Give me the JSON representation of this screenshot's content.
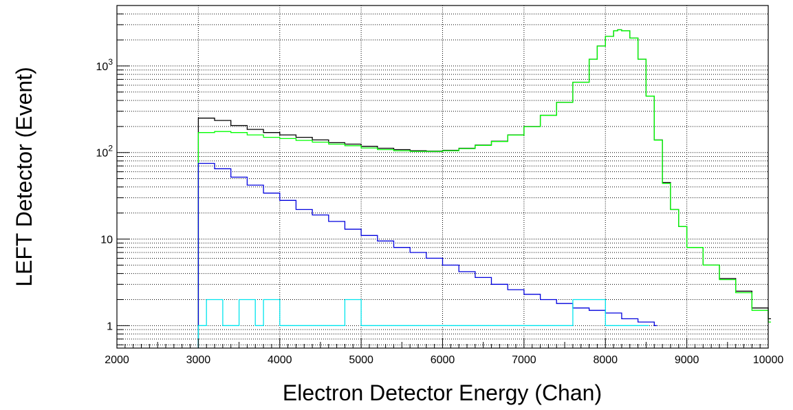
{
  "chart_data": {
    "type": "line",
    "title": "",
    "xlabel": "Electron Detector Energy (Chan)",
    "ylabel": "LEFT Detector (Event)",
    "x_range": [
      2000,
      10000
    ],
    "y_scale": "log",
    "y_range": [
      0.55,
      5000
    ],
    "grid": true,
    "legend": "none",
    "x_ticks": [
      "2000",
      "3000",
      "4000",
      "5000",
      "6000",
      "7000",
      "8000",
      "9000",
      "10000"
    ],
    "y_ticks": [
      {
        "value": 1,
        "label": "1"
      },
      {
        "value": 10,
        "label": "10"
      },
      {
        "value": 100,
        "label": "10",
        "exponent": "2"
      },
      {
        "value": 1000,
        "label": "10",
        "exponent": "3"
      }
    ],
    "series": [
      {
        "color": "#000000",
        "points": [
          [
            3000,
            250
          ],
          [
            3200,
            235
          ],
          [
            3400,
            205
          ],
          [
            3600,
            185
          ],
          [
            3800,
            170
          ],
          [
            4000,
            160
          ],
          [
            4200,
            150
          ],
          [
            4400,
            140
          ],
          [
            4600,
            130
          ],
          [
            4800,
            125
          ],
          [
            5000,
            118
          ],
          [
            5200,
            112
          ],
          [
            5400,
            108
          ],
          [
            5600,
            105
          ],
          [
            5800,
            104
          ],
          [
            6000,
            106
          ],
          [
            6200,
            112
          ],
          [
            6400,
            122
          ],
          [
            6600,
            135
          ],
          [
            6800,
            160
          ],
          [
            7000,
            200
          ],
          [
            7200,
            270
          ],
          [
            7400,
            380
          ],
          [
            7600,
            650
          ],
          [
            7800,
            1200
          ],
          [
            7900,
            1700
          ],
          [
            8000,
            2200
          ],
          [
            8100,
            2550
          ],
          [
            8150,
            2620
          ],
          [
            8200,
            2550
          ],
          [
            8300,
            2100
          ],
          [
            8400,
            1200
          ],
          [
            8500,
            450
          ],
          [
            8600,
            140
          ],
          [
            8700,
            45
          ],
          [
            8800,
            22
          ],
          [
            8900,
            14
          ],
          [
            9000,
            8
          ],
          [
            9200,
            5
          ],
          [
            9400,
            3.5
          ],
          [
            9600,
            2.5
          ],
          [
            9800,
            1.6
          ],
          [
            10000,
            1.2
          ]
        ]
      },
      {
        "color": "#00ff00",
        "points": [
          [
            3000,
            170
          ],
          [
            3200,
            175
          ],
          [
            3400,
            170
          ],
          [
            3600,
            160
          ],
          [
            3800,
            150
          ],
          [
            4000,
            145
          ],
          [
            4200,
            138
          ],
          [
            4400,
            132
          ],
          [
            4600,
            125
          ],
          [
            4800,
            120
          ],
          [
            5000,
            113
          ],
          [
            5200,
            108
          ],
          [
            5400,
            105
          ],
          [
            5600,
            103
          ],
          [
            5800,
            103
          ],
          [
            6000,
            105
          ],
          [
            6200,
            111
          ],
          [
            6400,
            121
          ],
          [
            6600,
            134
          ],
          [
            6800,
            159
          ],
          [
            7000,
            199
          ],
          [
            7200,
            269
          ],
          [
            7400,
            379
          ],
          [
            7600,
            648
          ],
          [
            7800,
            1198
          ],
          [
            7900,
            1698
          ],
          [
            8000,
            2198
          ],
          [
            8100,
            2548
          ],
          [
            8150,
            2618
          ],
          [
            8200,
            2548
          ],
          [
            8300,
            2098
          ],
          [
            8400,
            1198
          ],
          [
            8500,
            449
          ],
          [
            8600,
            139
          ],
          [
            8700,
            44
          ],
          [
            8800,
            22
          ],
          [
            8900,
            14
          ],
          [
            9000,
            8
          ],
          [
            9200,
            5
          ],
          [
            9400,
            3.4
          ],
          [
            9600,
            2.4
          ],
          [
            9800,
            1.5
          ],
          [
            10000,
            1.1
          ]
        ]
      },
      {
        "color": "#0000dd",
        "points": [
          [
            3000,
            75
          ],
          [
            3200,
            65
          ],
          [
            3400,
            52
          ],
          [
            3600,
            42
          ],
          [
            3800,
            34
          ],
          [
            4000,
            28
          ],
          [
            4200,
            22
          ],
          [
            4400,
            19
          ],
          [
            4600,
            16
          ],
          [
            4800,
            13
          ],
          [
            5000,
            11
          ],
          [
            5200,
            9.5
          ],
          [
            5400,
            8
          ],
          [
            5600,
            7
          ],
          [
            5800,
            6
          ],
          [
            6000,
            5
          ],
          [
            6200,
            4.2
          ],
          [
            6400,
            3.6
          ],
          [
            6600,
            3
          ],
          [
            6800,
            2.6
          ],
          [
            7000,
            2.3
          ],
          [
            7200,
            2
          ],
          [
            7400,
            1.8
          ],
          [
            7600,
            1.6
          ],
          [
            7800,
            1.5
          ],
          [
            8000,
            1.4
          ],
          [
            8200,
            1.2
          ],
          [
            8400,
            1.1
          ],
          [
            8600,
            1
          ]
        ]
      },
      {
        "color": "#00e5ee",
        "points": [
          [
            3000,
            1
          ],
          [
            3100,
            2
          ],
          [
            3300,
            1
          ],
          [
            3500,
            2
          ],
          [
            3700,
            1
          ],
          [
            3800,
            2
          ],
          [
            4000,
            1
          ],
          [
            4200,
            1
          ],
          [
            4500,
            1
          ],
          [
            4800,
            2
          ],
          [
            5000,
            1
          ],
          [
            5400,
            1
          ],
          [
            5800,
            1
          ],
          [
            6400,
            1
          ],
          [
            7000,
            1
          ],
          [
            7600,
            2
          ],
          [
            8000,
            1
          ],
          [
            8200,
            1
          ],
          [
            8500,
            1
          ]
        ]
      }
    ]
  }
}
